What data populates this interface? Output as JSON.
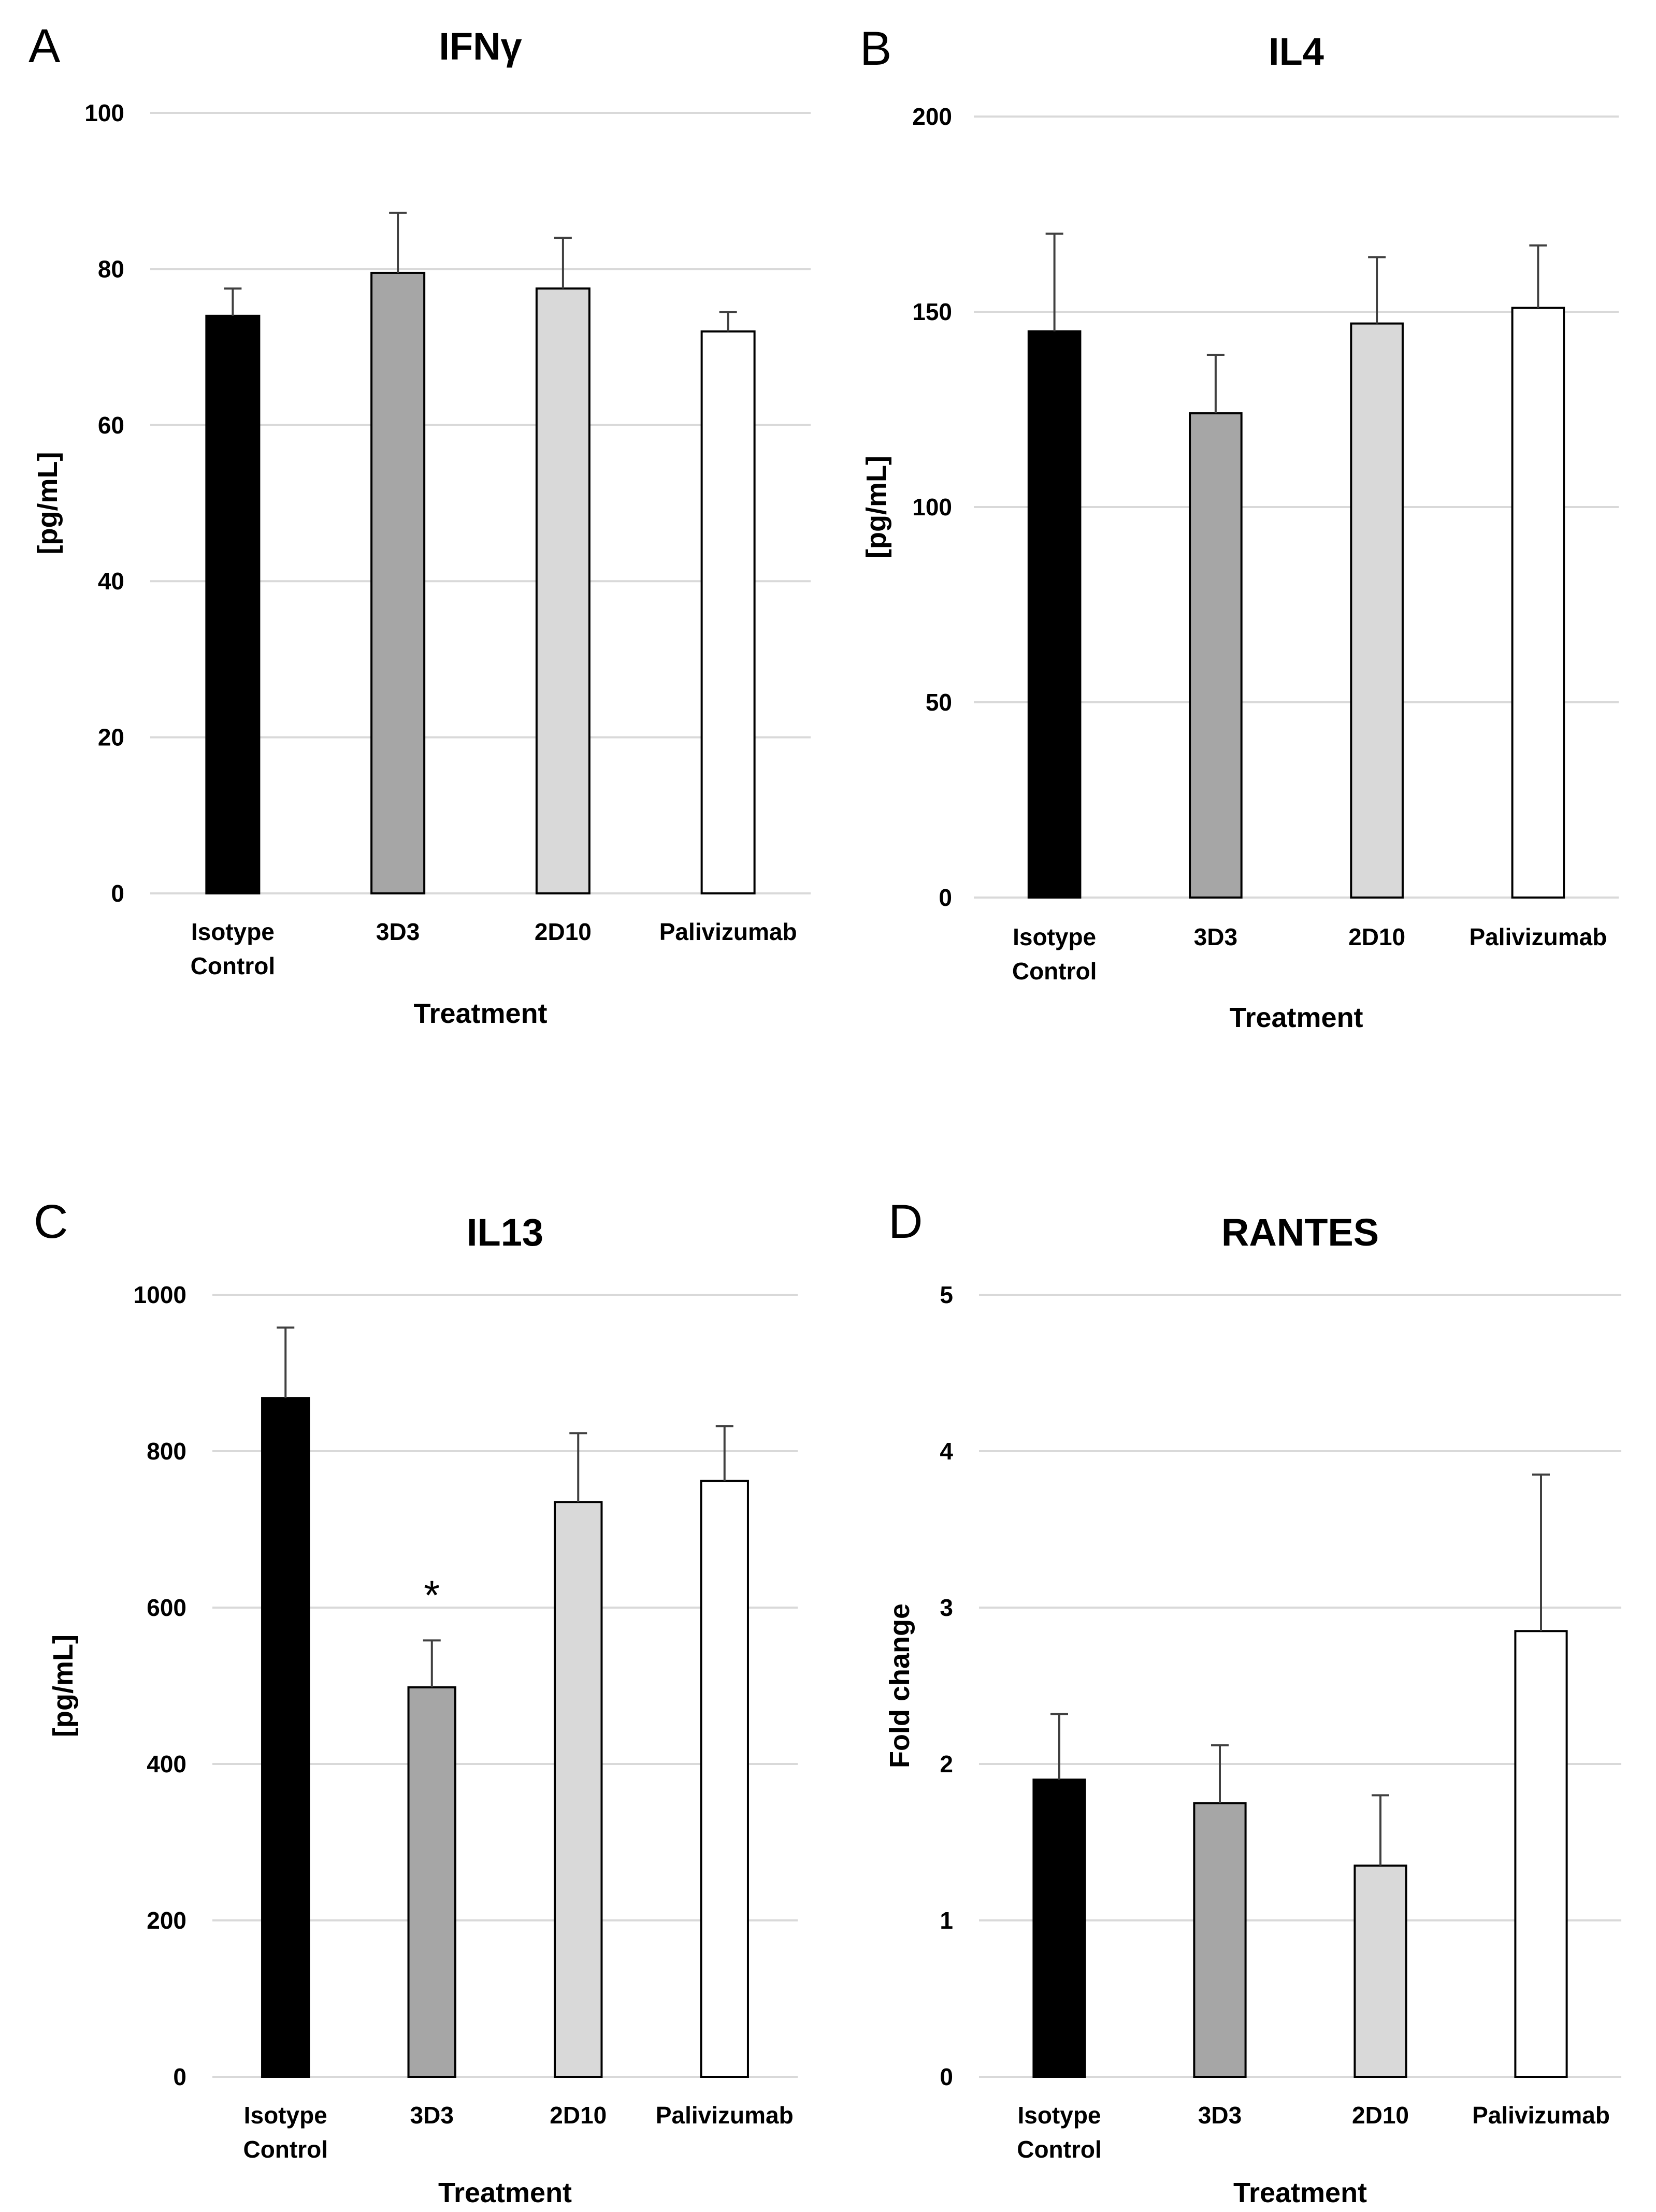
{
  "colors": {
    "grid": "#d9d9d9",
    "bar_stroke": "#000000",
    "errorbar": "#404040",
    "bar_fills": [
      "#000000",
      "#a6a6a6",
      "#d9d9d9",
      "#ffffff"
    ]
  },
  "chart_data": [
    {
      "panel": "A",
      "type": "bar",
      "title": "IFNγ",
      "xlabel": "Treatment",
      "ylabel": "[pg/mL]",
      "categories": [
        "Isotype Control",
        "3D3",
        "2D10",
        "Palivizumab"
      ],
      "category_lines": [
        [
          "Isotype",
          "Control"
        ],
        [
          "3D3"
        ],
        [
          "2D10"
        ],
        [
          "Palivizumab"
        ]
      ],
      "values": [
        74,
        79.5,
        77.5,
        72
      ],
      "errors": [
        3.5,
        7.7,
        6.5,
        2.5
      ],
      "yticks": [
        0,
        20,
        40,
        60,
        80,
        100
      ],
      "ylim": [
        0,
        100
      ],
      "grid": true,
      "annotations": []
    },
    {
      "panel": "B",
      "type": "bar",
      "title": "IL4",
      "xlabel": "Treatment",
      "ylabel": "[pg/mL]",
      "categories": [
        "Isotype Control",
        "3D3",
        "2D10",
        "Palivizumab"
      ],
      "category_lines": [
        [
          "Isotype",
          "Control"
        ],
        [
          "3D3"
        ],
        [
          "2D10"
        ],
        [
          "Palivizumab"
        ]
      ],
      "values": [
        145,
        124,
        147,
        151
      ],
      "errors": [
        25,
        15,
        17,
        16
      ],
      "yticks": [
        0,
        50,
        100,
        150,
        200
      ],
      "ylim": [
        0,
        200
      ],
      "grid": true,
      "annotations": []
    },
    {
      "panel": "C",
      "type": "bar",
      "title": "IL13",
      "xlabel": "Treatment",
      "ylabel": "[pg/mL]",
      "categories": [
        "Isotype Control",
        "3D3",
        "2D10",
        "Palivizumab"
      ],
      "category_lines": [
        [
          "Isotype",
          "Control"
        ],
        [
          "3D3"
        ],
        [
          "2D10"
        ],
        [
          "Palivizumab"
        ]
      ],
      "values": [
        868,
        498,
        735,
        762
      ],
      "errors": [
        90,
        60,
        88,
        70
      ],
      "yticks": [
        0,
        200,
        400,
        600,
        800,
        1000
      ],
      "ylim": [
        0,
        1000
      ],
      "grid": true,
      "annotations": [
        {
          "category_index": 1,
          "text": "*"
        }
      ]
    },
    {
      "panel": "D",
      "type": "bar",
      "title": "RANTES",
      "xlabel": "Treatment",
      "ylabel": "Fold change",
      "categories": [
        "Isotype Control",
        "3D3",
        "2D10",
        "Palivizumab"
      ],
      "category_lines": [
        [
          "Isotype",
          "Control"
        ],
        [
          "3D3"
        ],
        [
          "2D10"
        ],
        [
          "Palivizumab"
        ]
      ],
      "values": [
        1.9,
        1.75,
        1.35,
        2.85
      ],
      "errors": [
        0.42,
        0.37,
        0.45,
        1.0
      ],
      "yticks": [
        0,
        1,
        2,
        3,
        4,
        5
      ],
      "ylim": [
        0,
        5
      ],
      "grid": true,
      "annotations": []
    }
  ]
}
